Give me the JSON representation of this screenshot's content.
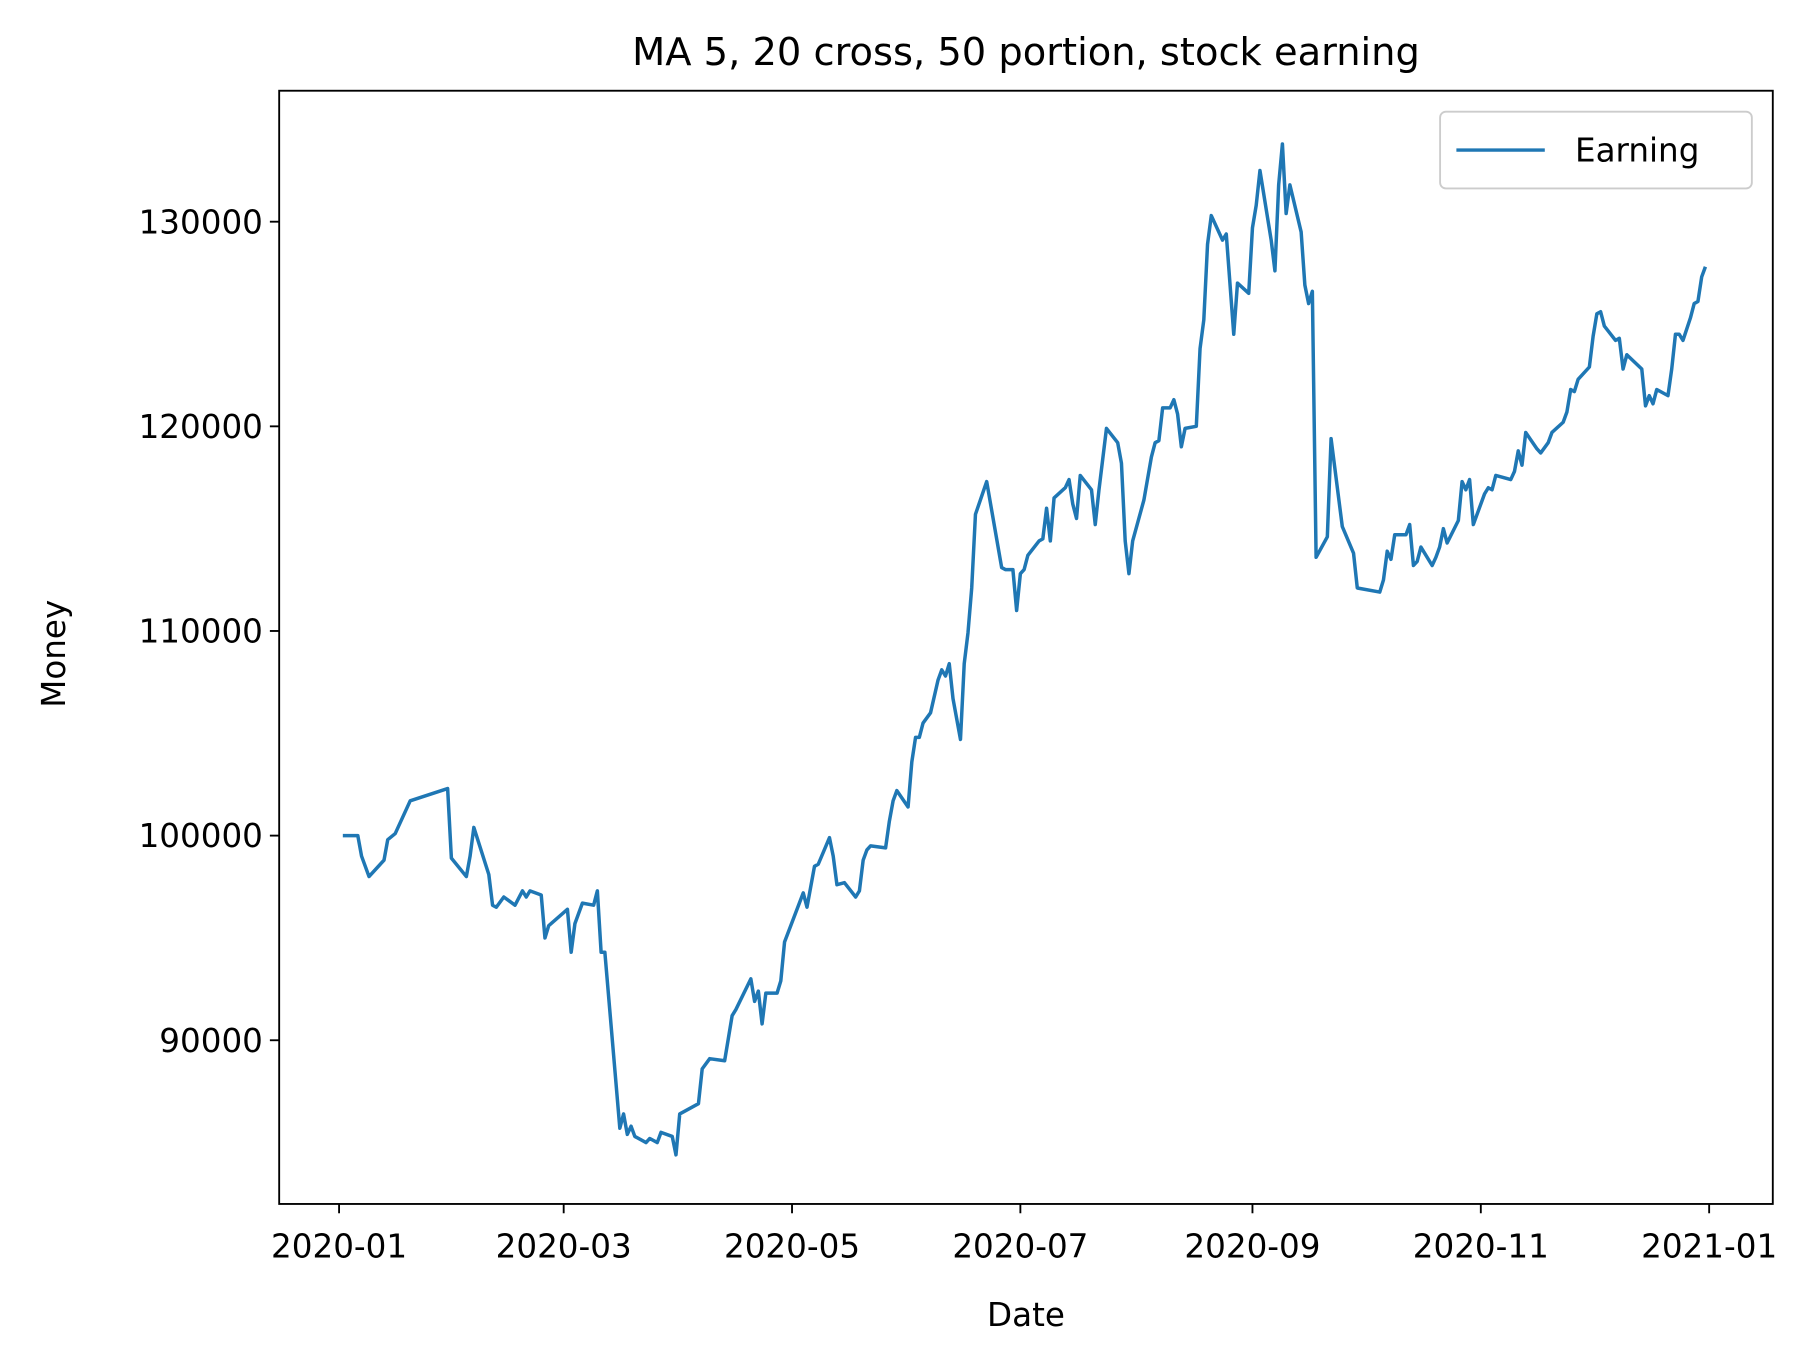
{
  "chart_data": {
    "type": "line",
    "title": "MA 5, 20 cross, 50 portion, stock earning",
    "x_label": "Date",
    "y_label": "Money",
    "x": [
      "2020-01-02",
      "2020-01-06",
      "2020-01-07",
      "2020-01-09",
      "2020-01-13",
      "2020-01-14",
      "2020-01-16",
      "2020-01-20",
      "2020-01-30",
      "2020-01-31",
      "2020-02-04",
      "2020-02-05",
      "2020-02-06",
      "2020-02-10",
      "2020-02-11",
      "2020-02-12",
      "2020-02-14",
      "2020-02-17",
      "2020-02-19",
      "2020-02-20",
      "2020-02-21",
      "2020-02-24",
      "2020-02-25",
      "2020-02-26",
      "2020-03-02",
      "2020-03-03",
      "2020-03-04",
      "2020-03-06",
      "2020-03-09",
      "2020-03-10",
      "2020-03-11",
      "2020-03-12",
      "2020-03-16",
      "2020-03-17",
      "2020-03-18",
      "2020-03-19",
      "2020-03-20",
      "2020-03-23",
      "2020-03-24",
      "2020-03-26",
      "2020-03-27",
      "2020-03-30",
      "2020-03-31",
      "2020-04-01",
      "2020-04-06",
      "2020-04-07",
      "2020-04-09",
      "2020-04-13",
      "2020-04-14",
      "2020-04-15",
      "2020-04-16",
      "2020-04-20",
      "2020-04-21",
      "2020-04-22",
      "2020-04-23",
      "2020-04-24",
      "2020-04-27",
      "2020-04-28",
      "2020-04-29",
      "2020-05-04",
      "2020-05-05",
      "2020-05-07",
      "2020-05-08",
      "2020-05-11",
      "2020-05-12",
      "2020-05-13",
      "2020-05-15",
      "2020-05-18",
      "2020-05-19",
      "2020-05-20",
      "2020-05-21",
      "2020-05-22",
      "2020-05-26",
      "2020-05-27",
      "2020-05-28",
      "2020-05-29",
      "2020-06-01",
      "2020-06-02",
      "2020-06-03",
      "2020-06-04",
      "2020-06-05",
      "2020-06-07",
      "2020-06-09",
      "2020-06-10",
      "2020-06-11",
      "2020-06-12",
      "2020-06-13",
      "2020-06-15",
      "2020-06-16",
      "2020-06-17",
      "2020-06-18",
      "2020-06-19",
      "2020-06-22",
      "2020-06-26",
      "2020-06-27",
      "2020-06-29",
      "2020-06-30",
      "2020-07-01",
      "2020-07-02",
      "2020-07-03",
      "2020-07-06",
      "2020-07-07",
      "2020-07-08",
      "2020-07-09",
      "2020-07-10",
      "2020-07-13",
      "2020-07-14",
      "2020-07-15",
      "2020-07-16",
      "2020-07-17",
      "2020-07-20",
      "2020-07-21",
      "2020-07-22",
      "2020-07-24",
      "2020-07-27",
      "2020-07-28",
      "2020-07-29",
      "2020-07-30",
      "2020-07-31",
      "2020-08-03",
      "2020-08-05",
      "2020-08-06",
      "2020-08-07",
      "2020-08-08",
      "2020-08-10",
      "2020-08-11",
      "2020-08-12",
      "2020-08-13",
      "2020-08-14",
      "2020-08-17",
      "2020-08-18",
      "2020-08-19",
      "2020-08-20",
      "2020-08-21",
      "2020-08-24",
      "2020-08-25",
      "2020-08-27",
      "2020-08-28",
      "2020-08-31",
      "2020-09-01",
      "2020-09-02",
      "2020-09-03",
      "2020-09-06",
      "2020-09-07",
      "2020-09-08",
      "2020-09-09",
      "2020-09-10",
      "2020-09-11",
      "2020-09-14",
      "2020-09-15",
      "2020-09-16",
      "2020-09-17",
      "2020-09-18",
      "2020-09-21",
      "2020-09-22",
      "2020-09-25",
      "2020-09-28",
      "2020-09-29",
      "2020-10-05",
      "2020-10-06",
      "2020-10-07",
      "2020-10-08",
      "2020-10-09",
      "2020-10-12",
      "2020-10-13",
      "2020-10-14",
      "2020-10-15",
      "2020-10-16",
      "2020-10-19",
      "2020-10-20",
      "2020-10-21",
      "2020-10-22",
      "2020-10-23",
      "2020-10-26",
      "2020-10-27",
      "2020-10-28",
      "2020-10-29",
      "2020-10-30",
      "2020-11-02",
      "2020-11-03",
      "2020-11-04",
      "2020-11-05",
      "2020-11-09",
      "2020-11-10",
      "2020-11-11",
      "2020-11-12",
      "2020-11-13",
      "2020-11-16",
      "2020-11-17",
      "2020-11-19",
      "2020-11-20",
      "2020-11-23",
      "2020-11-24",
      "2020-11-25",
      "2020-11-26",
      "2020-11-27",
      "2020-11-30",
      "2020-12-01",
      "2020-12-02",
      "2020-12-03",
      "2020-12-04",
      "2020-12-07",
      "2020-12-08",
      "2020-12-09",
      "2020-12-10",
      "2020-12-14",
      "2020-12-15",
      "2020-12-16",
      "2020-12-17",
      "2020-12-18",
      "2020-12-21",
      "2020-12-22",
      "2020-12-23",
      "2020-12-24",
      "2020-12-25",
      "2020-12-27",
      "2020-12-28",
      "2020-12-29",
      "2020-12-30",
      "2020-12-31"
    ],
    "series": [
      {
        "name": "Earning",
        "color": "#1f77b4",
        "values": [
          100000,
          100000,
          99000,
          98000,
          98800,
          99800,
          100100,
          101700,
          102300,
          98900,
          98000,
          99000,
          100400,
          98100,
          96600,
          96500,
          97000,
          96600,
          97300,
          97000,
          97300,
          97100,
          95000,
          95600,
          96400,
          94300,
          95700,
          96700,
          96600,
          97300,
          94300,
          94300,
          85700,
          86400,
          85400,
          85800,
          85300,
          85000,
          85200,
          85000,
          85500,
          85300,
          84400,
          86400,
          86900,
          88600,
          89100,
          89000,
          90100,
          91200,
          91500,
          93000,
          91900,
          92400,
          90800,
          92300,
          92300,
          92900,
          94800,
          97200,
          96500,
          98500,
          98600,
          99900,
          99000,
          97600,
          97700,
          97000,
          97300,
          98800,
          99300,
          99500,
          99400,
          100700,
          101700,
          102200,
          101400,
          103600,
          104800,
          104800,
          105500,
          106000,
          107600,
          108100,
          107800,
          108400,
          106700,
          104700,
          108400,
          109900,
          112100,
          115700,
          117300,
          113100,
          113000,
          113000,
          111000,
          112800,
          113000,
          113700,
          114400,
          114500,
          116000,
          114400,
          116500,
          117000,
          117400,
          116200,
          115500,
          117600,
          116900,
          115200,
          116900,
          119900,
          119200,
          118200,
          114400,
          112800,
          114400,
          116400,
          118500,
          119200,
          119300,
          120900,
          120900,
          121300,
          120600,
          119000,
          119900,
          120000,
          123800,
          125200,
          128900,
          130300,
          129100,
          129400,
          124500,
          127000,
          126500,
          129700,
          130800,
          132500,
          129100,
          127600,
          131800,
          133800,
          130400,
          131800,
          129500,
          126900,
          126000,
          126600,
          113600,
          114600,
          119400,
          115100,
          113800,
          112100,
          111900,
          112500,
          113900,
          113500,
          114700,
          114700,
          115200,
          113200,
          113400,
          114100,
          113200,
          113600,
          114100,
          115000,
          114300,
          115400,
          117300,
          116900,
          117400,
          115200,
          116700,
          117000,
          116900,
          117600,
          117400,
          117800,
          118800,
          118100,
          119700,
          118900,
          118700,
          119200,
          119700,
          120200,
          120700,
          121800,
          121700,
          122300,
          122900,
          124400,
          125500,
          125600,
          124900,
          124200,
          124300,
          122800,
          123500,
          122800,
          121000,
          121500,
          121100,
          121800,
          121500,
          122800,
          124500,
          124500,
          124200,
          125300,
          126000,
          126100,
          127300,
          127800
        ]
      }
    ],
    "xlim": [
      "2019-12-16",
      "2021-01-18"
    ],
    "xticks": [
      {
        "value": "2020-01-01",
        "label": "2020-01"
      },
      {
        "value": "2020-03-01",
        "label": "2020-03"
      },
      {
        "value": "2020-05-01",
        "label": "2020-05"
      },
      {
        "value": "2020-07-01",
        "label": "2020-07"
      },
      {
        "value": "2020-09-01",
        "label": "2020-09"
      },
      {
        "value": "2020-11-01",
        "label": "2020-11"
      },
      {
        "value": "2021-01-01",
        "label": "2021-01"
      }
    ],
    "ylim": [
      82000,
      136400
    ],
    "yticks": [
      90000,
      100000,
      110000,
      120000,
      130000
    ],
    "legend": "upper right",
    "grid": false
  }
}
